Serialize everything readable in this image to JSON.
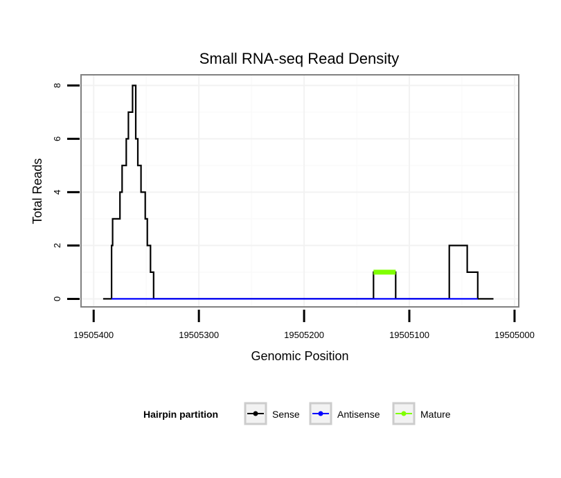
{
  "chart_data": {
    "type": "line",
    "title": "Small RNA-seq Read Density",
    "xlabel": "Genomic Position",
    "ylabel": "Total Reads",
    "x_reversed": true,
    "xlim": [
      19505412,
      19504996
    ],
    "ylim": [
      -0.3,
      8.4
    ],
    "x_ticks": [
      19505400,
      19505300,
      19505200,
      19505100,
      19505000
    ],
    "x_tick_labels": [
      "19505400",
      "19505300",
      "19505200",
      "19505100",
      "19505000"
    ],
    "y_ticks": [
      0,
      2,
      4,
      6,
      8
    ],
    "y_tick_labels": [
      "0",
      "2",
      "4",
      "6",
      "8"
    ],
    "grid": true,
    "legend": {
      "title": "Hairpin partition",
      "position": "bottom"
    },
    "series": [
      {
        "name": "Sense",
        "color": "#000000",
        "width": "normal",
        "x": [
          19505391,
          19505383,
          19505383,
          19505382,
          19505382,
          19505380,
          19505380,
          19505375,
          19505375,
          19505373,
          19505373,
          19505369,
          19505369,
          19505367,
          19505367,
          19505365,
          19505365,
          19505363,
          19505363,
          19505360,
          19505360,
          19505358,
          19505358,
          19505357,
          19505357,
          19505355,
          19505355,
          19505351,
          19505351,
          19505349,
          19505349,
          19505346,
          19505346,
          19505345,
          19505345,
          19505343,
          19505343,
          19505341,
          19505341,
          19505134,
          19505134,
          19505113,
          19505113,
          19505062,
          19505062,
          19505045,
          19505045,
          19505035,
          19505035,
          19505020
        ],
        "y": [
          0,
          0,
          2,
          2,
          3,
          3,
          3,
          3,
          4,
          4,
          5,
          5,
          6,
          6,
          7,
          7,
          7,
          7,
          8,
          8,
          6,
          6,
          5,
          5,
          5,
          5,
          4,
          4,
          3,
          3,
          2,
          2,
          1,
          1,
          1,
          1,
          0,
          0,
          0,
          0,
          1,
          1,
          0,
          0,
          2,
          2,
          1,
          1,
          0,
          0
        ]
      },
      {
        "name": "Antisense",
        "color": "#0000ff",
        "width": "normal",
        "x": [
          19505383,
          19505341,
          19505134,
          19505113,
          19505062,
          19505035
        ],
        "y": [
          0,
          0,
          0,
          0,
          0,
          0
        ]
      },
      {
        "name": "Mature",
        "color": "#80ff00",
        "width": "thick",
        "x": [
          19505134,
          19505113
        ],
        "y": [
          1,
          1
        ]
      }
    ]
  }
}
